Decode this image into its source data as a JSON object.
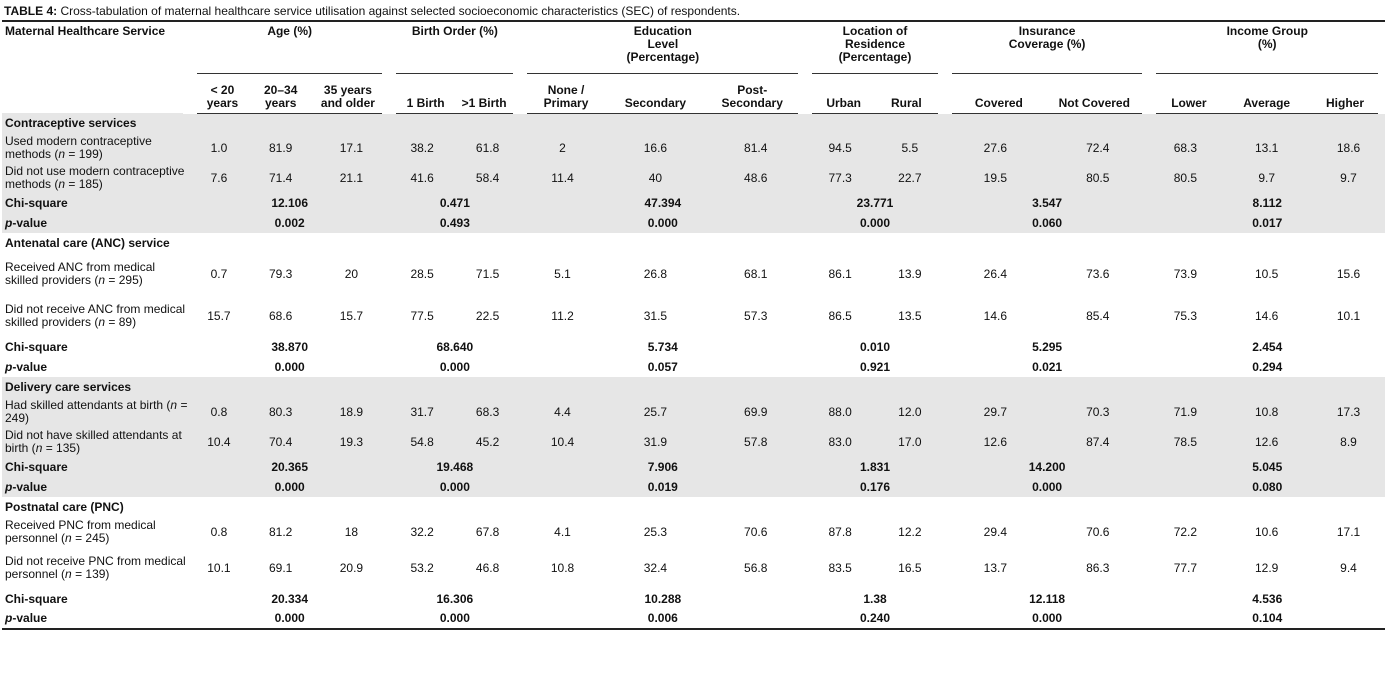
{
  "caption": {
    "label": "TABLE 4:",
    "text": " Cross-tabulation of maternal healthcare service utilisation against selected socioeconomic characteristics (SEC) of respondents."
  },
  "header": {
    "service": "Maternal Healthcare Service",
    "groups": [
      {
        "label": "Age (%)",
        "subs": [
          "< 20 years",
          "20–34 years",
          "35 years and older"
        ]
      },
      {
        "label": "Birth Order (%)",
        "subs": [
          "1 Birth",
          ">1 Birth"
        ]
      },
      {
        "label": "Education Level (Percentage)",
        "subs": [
          "None / Primary",
          "Secondary",
          "Post-Secondary"
        ]
      },
      {
        "label": "Location of Residence (Percentage)",
        "subs": [
          "Urban",
          "Rural"
        ]
      },
      {
        "label": "Insurance Coverage (%)",
        "subs": [
          "Covered",
          "Not Covered"
        ]
      },
      {
        "label": "Income Group (%)",
        "subs": [
          "Lower",
          "Average",
          "Higher"
        ]
      }
    ]
  },
  "sections": [
    {
      "title": "Contraceptive services",
      "shaded": true,
      "rows": [
        {
          "label_pre": "Used modern contraceptive methods (",
          "n_label": "n",
          "label_post": " = 199)",
          "values": [
            "1.0",
            "81.9",
            "17.1",
            "38.2",
            "61.8",
            "2",
            "16.6",
            "81.4",
            "94.5",
            "5.5",
            "27.6",
            "72.4",
            "68.3",
            "13.1",
            "18.6"
          ]
        },
        {
          "label_pre": "Did not use modern contraceptive methods (",
          "n_label": "n",
          "label_post": " = 185)",
          "values": [
            "7.6",
            "71.4",
            "21.1",
            "41.6",
            "58.4",
            "11.4",
            "40",
            "48.6",
            "77.3",
            "22.7",
            "19.5",
            "80.5",
            "80.5",
            "9.7",
            "9.7"
          ]
        }
      ],
      "chi_label": "Chi-square",
      "chi": [
        "12.106",
        "0.471",
        "47.394",
        "23.771",
        "3.547",
        "8.112"
      ],
      "p_label": "p",
      "p_suffix": "-value",
      "p": [
        "0.002",
        "0.493",
        "0.000",
        "0.000",
        "0.060",
        "0.017"
      ]
    },
    {
      "title": "Antenatal care (ANC) service",
      "shaded": false,
      "rows": [
        {
          "label_pre": "Received ANC from medical skilled providers (",
          "n_label": "n",
          "label_post": " = 295)",
          "values": [
            "0.7",
            "79.3",
            "20",
            "28.5",
            "71.5",
            "5.1",
            "26.8",
            "68.1",
            "86.1",
            "13.9",
            "26.4",
            "73.6",
            "73.9",
            "10.5",
            "15.6"
          ]
        },
        {
          "label_pre": "Did not receive ANC from medical skilled providers (",
          "n_label": "n",
          "label_post": " = 89)",
          "values": [
            "15.7",
            "68.6",
            "15.7",
            "77.5",
            "22.5",
            "11.2",
            "31.5",
            "57.3",
            "86.5",
            "13.5",
            "14.6",
            "85.4",
            "75.3",
            "14.6",
            "10.1"
          ]
        }
      ],
      "chi_label": "Chi-square",
      "chi": [
        "38.870",
        "68.640",
        "5.734",
        "0.010",
        "5.295",
        "2.454"
      ],
      "p_label": "p",
      "p_suffix": "-value",
      "p": [
        "0.000",
        "0.000",
        "0.057",
        "0.921",
        "0.021",
        "0.294"
      ]
    },
    {
      "title": "Delivery care services",
      "shaded": true,
      "rows": [
        {
          "label_pre": "Had skilled attendants at birth (",
          "n_label": "n",
          "label_post": " = 249)",
          "values": [
            "0.8",
            "80.3",
            "18.9",
            "31.7",
            "68.3",
            "4.4",
            "25.7",
            "69.9",
            "88.0",
            "12.0",
            "29.7",
            "70.3",
            "71.9",
            "10.8",
            "17.3"
          ]
        },
        {
          "label_pre": "Did not have skilled attendants at birth (",
          "n_label": "n",
          "label_post": " = 135)",
          "values": [
            "10.4",
            "70.4",
            "19.3",
            "54.8",
            "45.2",
            "10.4",
            "31.9",
            "57.8",
            "83.0",
            "17.0",
            "12.6",
            "87.4",
            "78.5",
            "12.6",
            "8.9"
          ]
        }
      ],
      "chi_label": "Chi-square",
      "chi": [
        "20.365",
        "19.468",
        "7.906",
        "1.831",
        "14.200",
        "5.045"
      ],
      "p_label": "p",
      "p_suffix": "-value",
      "p": [
        "0.000",
        "0.000",
        "0.019",
        "0.176",
        "0.000",
        "0.080"
      ]
    },
    {
      "title": "Postnatal care (PNC)",
      "shaded": false,
      "rows": [
        {
          "label_pre": "Received PNC from medical personnel (",
          "n_label": "n",
          "label_post": " = 245)",
          "values": [
            "0.8",
            "81.2",
            "18",
            "32.2",
            "67.8",
            "4.1",
            "25.3",
            "70.6",
            "87.8",
            "12.2",
            "29.4",
            "70.6",
            "72.2",
            "10.6",
            "17.1"
          ]
        },
        {
          "label_pre": "Did not receive PNC from medical personnel (",
          "n_label": "n",
          "label_post": " = 139)",
          "values": [
            "10.1",
            "69.1",
            "20.9",
            "53.2",
            "46.8",
            "10.8",
            "32.4",
            "56.8",
            "83.5",
            "16.5",
            "13.7",
            "86.3",
            "77.7",
            "12.9",
            "9.4"
          ]
        }
      ],
      "chi_label": "Chi-square",
      "chi": [
        "20.334",
        "16.306",
        "10.288",
        "1.38",
        "12.118",
        "4.536"
      ],
      "p_label": "p",
      "p_suffix": "-value",
      "p": [
        "0.000",
        "0.000",
        "0.006",
        "0.240",
        "0.000",
        "0.104"
      ]
    }
  ]
}
